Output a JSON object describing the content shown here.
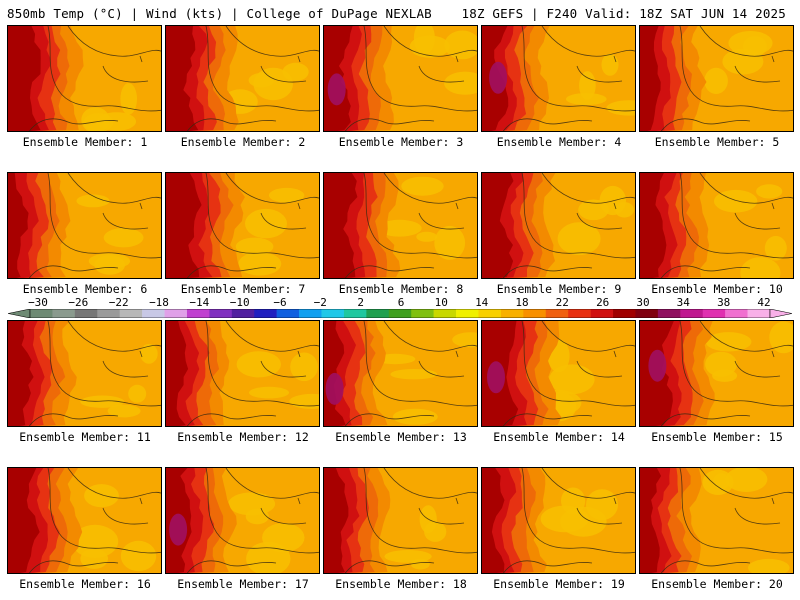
{
  "header": {
    "left": "850mb Temp (°C) | Wind (kts) | College of DuPage NEXLAB",
    "right": "18Z GEFS | F240 Valid: 18Z SAT JUN 14 2025"
  },
  "panels": [
    "Ensemble Member: 1",
    "Ensemble Member: 2",
    "Ensemble Member: 3",
    "Ensemble Member: 4",
    "Ensemble Member: 5",
    "Ensemble Member: 6",
    "Ensemble Member: 7",
    "Ensemble Member: 8",
    "Ensemble Member: 9",
    "Ensemble Member: 10",
    "Ensemble Member: 11",
    "Ensemble Member: 12",
    "Ensemble Member: 13",
    "Ensemble Member: 14",
    "Ensemble Member: 15",
    "Ensemble Member: 16",
    "Ensemble Member: 17",
    "Ensemble Member: 18",
    "Ensemble Member: 19",
    "Ensemble Member: 20"
  ],
  "colorbar": {
    "tick_labels": [
      "−30",
      "−26",
      "−22",
      "−18",
      "−14",
      "−10",
      "−6",
      "−2",
      "2",
      "6",
      "10",
      "14",
      "18",
      "22",
      "26",
      "30",
      "34",
      "38",
      "42"
    ],
    "colors": [
      "#6e8a74",
      "#8a9a8e",
      "#777777",
      "#9a9a9a",
      "#b8b8b8",
      "#c8c8e6",
      "#e0a0e8",
      "#c040d0",
      "#8030c0",
      "#5020a0",
      "#2020c0",
      "#1060e0",
      "#10a0f0",
      "#20c8e8",
      "#20c8a0",
      "#20a050",
      "#40a020",
      "#80c010",
      "#c8d800",
      "#f0f000",
      "#f8d000",
      "#f8b000",
      "#f89000",
      "#f06010",
      "#e83010",
      "#d01010",
      "#a00000",
      "#800010",
      "#901060",
      "#c01890",
      "#e030b0",
      "#f070d0",
      "#f8b0e8"
    ]
  }
}
